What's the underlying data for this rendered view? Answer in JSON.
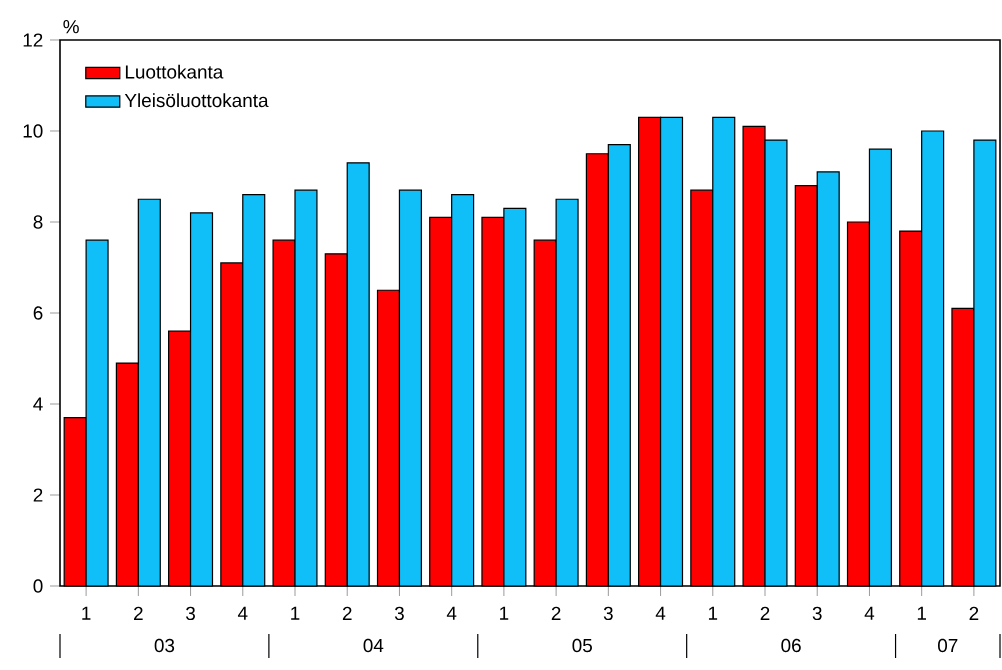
{
  "chart_data": {
    "type": "bar",
    "ylabel": "%",
    "categories": [
      "1",
      "2",
      "3",
      "4",
      "1",
      "2",
      "3",
      "4",
      "1",
      "2",
      "3",
      "4",
      "1",
      "2",
      "3",
      "4",
      "1",
      "2"
    ],
    "series": [
      {
        "name": "Luottokanta",
        "color": "#ff0000",
        "values": [
          3.7,
          4.9,
          5.6,
          7.1,
          7.6,
          7.3,
          6.5,
          8.1,
          8.1,
          7.6,
          9.5,
          10.3,
          8.7,
          10.1,
          8.8,
          8.0,
          7.8,
          6.1
        ]
      },
      {
        "name": "Yleisöluottokanta",
        "color": "#10bef8",
        "values": [
          7.6,
          8.5,
          8.2,
          8.6,
          8.7,
          9.3,
          8.7,
          8.6,
          8.3,
          8.5,
          9.7,
          10.3,
          10.3,
          9.8,
          9.1,
          9.6,
          10.0,
          9.8
        ]
      }
    ],
    "ylim": [
      0,
      12
    ],
    "yticks": [
      0,
      2,
      4,
      6,
      8,
      10,
      12
    ],
    "legend": "top left",
    "annotations": [
      "03",
      "04",
      "05",
      "06",
      "07"
    ]
  }
}
